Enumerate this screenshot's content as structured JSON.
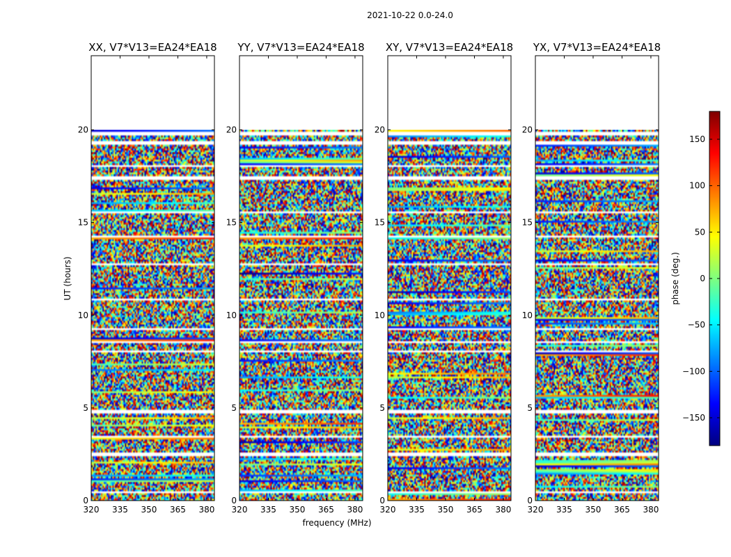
{
  "chart_data": {
    "type": "heatmap",
    "title": "2021-10-22 0.0-24.0",
    "xlabel": "frequency (MHz)",
    "ylabel": "UT (hours)",
    "xlim": [
      320,
      384
    ],
    "ylim": [
      0,
      24
    ],
    "xticks": [
      320,
      335,
      350,
      365,
      380
    ],
    "yticks": [
      0,
      5,
      10,
      15,
      20
    ],
    "data_extent_hours": [
      0,
      20
    ],
    "colorbar": {
      "label": "phase (deg.)",
      "range": [
        -180,
        180
      ],
      "ticks": [
        150,
        100,
        50,
        0,
        -50,
        -100,
        -150
      ],
      "tick_labels": [
        "150",
        "100",
        "50",
        "0",
        "−50",
        "−100",
        "−150"
      ],
      "colormap": "jet",
      "colors": [
        "#00007f",
        "#0000ff",
        "#007fff",
        "#00ffff",
        "#7fff7f",
        "#ffff00",
        "#ff7f00",
        "#ff0000",
        "#7f0000"
      ]
    },
    "panels": [
      {
        "title": "XX, V7*V13=EA24*EA18",
        "polarization": "XX"
      },
      {
        "title": "YY, V7*V13=EA24*EA18",
        "polarization": "YY"
      },
      {
        "title": "XY, V7*V13=EA24*EA18",
        "polarization": "XY"
      },
      {
        "title": "YX, V7*V13=EA24*EA18",
        "polarization": "YX"
      }
    ],
    "gaps_hours": [
      [
        0.4,
        0.5
      ],
      [
        2.4,
        2.6
      ],
      [
        3.4,
        3.5
      ],
      [
        4.75,
        4.85
      ],
      [
        8.0,
        8.1
      ],
      [
        8.5,
        8.6
      ],
      [
        9.2,
        9.3
      ],
      [
        10.8,
        10.9
      ],
      [
        12.7,
        12.8
      ],
      [
        14.2,
        14.35
      ],
      [
        15.5,
        15.6
      ],
      [
        17.3,
        17.5
      ],
      [
        18.0,
        18.1
      ],
      [
        19.2,
        19.35
      ],
      [
        19.75,
        19.85
      ]
    ]
  }
}
